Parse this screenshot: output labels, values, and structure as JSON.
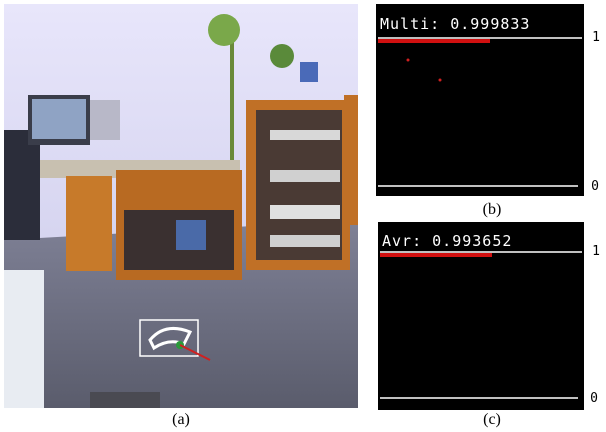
{
  "figure": {
    "panels": [
      {
        "label": "(a)"
      },
      {
        "label": "(b)",
        "score_text": "Multi: 0.999833",
        "top_label": "1",
        "bottom_label": "0"
      },
      {
        "label": "(c)",
        "score_text": "Avr: 0.993652",
        "top_label": "1",
        "bottom_label": "0"
      }
    ]
  }
}
